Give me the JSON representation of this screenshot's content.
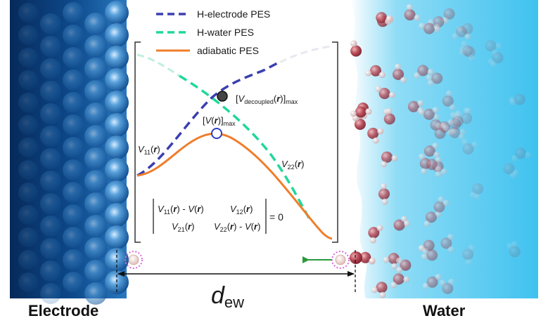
{
  "legend": {
    "items": [
      {
        "label": "H-electrode PES",
        "color": "#3b3fb0",
        "dash": true
      },
      {
        "label": "H-water PES",
        "color": "#1fd89a",
        "dash": true
      },
      {
        "label": "adiabatic PES",
        "color": "#f07d2a",
        "dash": false
      }
    ]
  },
  "annotations": {
    "v_decoupled_max": "[V decoupled(r)]max",
    "v_max": "[V(r)]max",
    "v11": "V11(r)",
    "v22": "V22(r)"
  },
  "determinant": {
    "r1c1": "V11(r) - V(r)",
    "r1c2": "V12(r)",
    "r2c1": "V21(r)",
    "r2c2": "V22(r) - V(r)",
    "rhs": "= 0"
  },
  "distance_label": "d",
  "distance_subscript": "ew",
  "labels": {
    "electrode": "Electrode",
    "water": "Water"
  },
  "colors": {
    "electrode_dark": "#0b3d7a",
    "electrode_light": "#6fb4e8",
    "water": "#4cc6ee",
    "proton_ring": "#d86ad8",
    "arrow": "#2a9a3a"
  }
}
